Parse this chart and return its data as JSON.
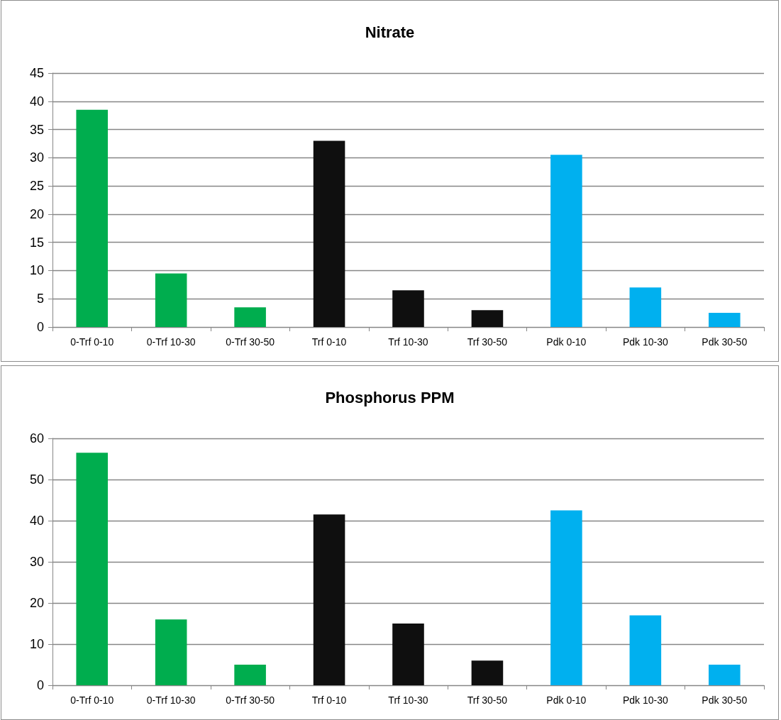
{
  "chart_data": [
    {
      "type": "bar",
      "title": "Nitrate",
      "categories": [
        "0-Trf 0-10",
        "0-Trf 10-30",
        "0-Trf 30-50",
        "Trf 0-10",
        "Trf 10-30",
        "Trf 30-50",
        "Pdk 0-10",
        "Pdk 10-30",
        "Pdk 30-50"
      ],
      "values": [
        38.5,
        9.5,
        3.5,
        33,
        6.5,
        3,
        30.5,
        7,
        2.5
      ],
      "colors": [
        "#00ad4e",
        "#00ad4e",
        "#00ad4e",
        "#0f0f0f",
        "#0f0f0f",
        "#0f0f0f",
        "#00b0ef",
        "#00b0ef",
        "#00b0ef"
      ],
      "ylim": [
        0,
        45
      ],
      "yticks": [
        0,
        5,
        10,
        15,
        20,
        25,
        30,
        35,
        40,
        45
      ],
      "grid": "y"
    },
    {
      "type": "bar",
      "title": "Phosphorus PPM",
      "categories": [
        "0-Trf 0-10",
        "0-Trf 10-30",
        "0-Trf 30-50",
        "Trf 0-10",
        "Trf 10-30",
        "Trf 30-50",
        "Pdk 0-10",
        "Pdk 10-30",
        "Pdk 30-50"
      ],
      "values": [
        56.5,
        16,
        5,
        41.5,
        15,
        6,
        42.5,
        17,
        5
      ],
      "colors": [
        "#00ad4e",
        "#00ad4e",
        "#00ad4e",
        "#0f0f0f",
        "#0f0f0f",
        "#0f0f0f",
        "#00b0ef",
        "#00b0ef",
        "#00b0ef"
      ],
      "ylim": [
        0,
        60
      ],
      "yticks": [
        0,
        10,
        20,
        30,
        40,
        50,
        60
      ],
      "grid": "y"
    }
  ]
}
